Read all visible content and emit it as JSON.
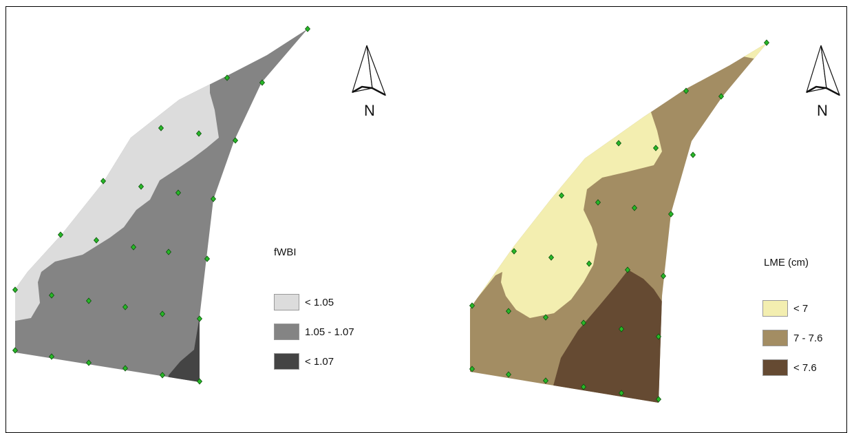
{
  "maps": [
    {
      "legend_title": "fWBI",
      "north_label": "N",
      "classes": [
        {
          "label": "< 1.05",
          "color": "#dcdcdc"
        },
        {
          "label": "1.05 - 1.07",
          "color": "#848484"
        },
        {
          "label": "< 1.07",
          "color": "#444444"
        }
      ]
    },
    {
      "legend_title": "LME (cm)",
      "north_label": "N",
      "classes": [
        {
          "label": "< 7",
          "color": "#f3eeb0"
        },
        {
          "label": "7 - 7.6",
          "color": "#a38d63"
        },
        {
          "label": "< 7.6",
          "color": "#654a32"
        }
      ]
    }
  ],
  "sample_point_color": "#28b828"
}
